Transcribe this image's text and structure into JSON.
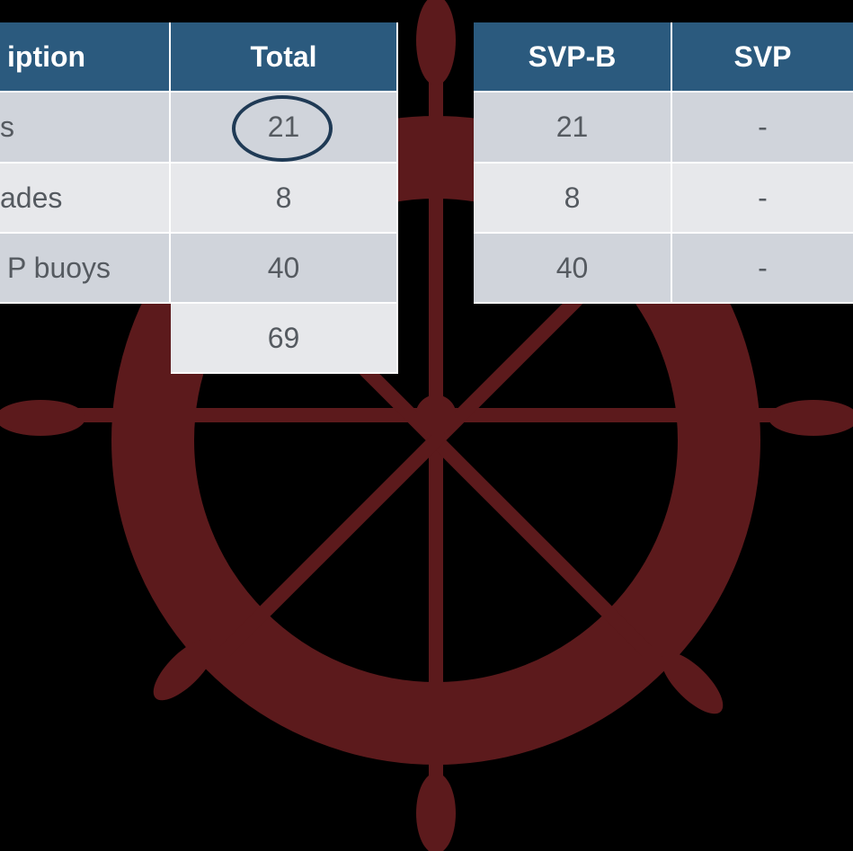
{
  "left_table": {
    "header": [
      "iption",
      "Total"
    ],
    "rows": [
      [
        "s",
        "21"
      ],
      [
        "ades",
        "8"
      ],
      [
        "P buoys",
        "40"
      ]
    ],
    "total": "69"
  },
  "right_table": {
    "header": [
      "SVP-B",
      "SVP"
    ],
    "rows": [
      [
        "21",
        "-"
      ],
      [
        "8",
        "-"
      ],
      [
        "40",
        "-"
      ]
    ]
  }
}
